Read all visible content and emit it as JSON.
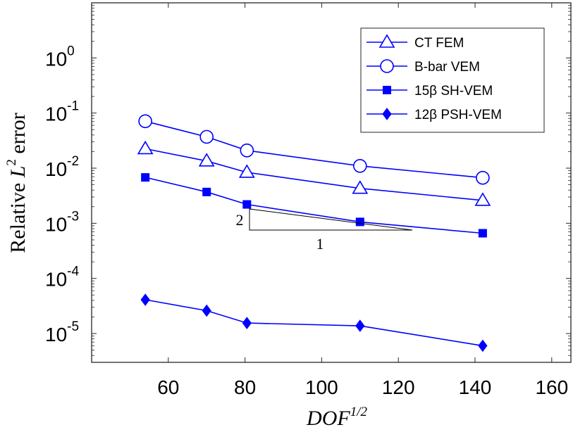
{
  "chart_data": {
    "type": "line",
    "xscale": "linear",
    "yscale": "log",
    "xlim": [
      40,
      165
    ],
    "ylim": [
      3e-06,
      10
    ],
    "x_ticks": [
      60,
      80,
      100,
      120,
      140,
      160
    ],
    "y_ticks": [
      {
        "value": 1,
        "base": "10",
        "exp": "0"
      },
      {
        "value": 0.1,
        "base": "10",
        "exp": "-1"
      },
      {
        "value": 0.01,
        "base": "10",
        "exp": "-2"
      },
      {
        "value": 0.001,
        "base": "10",
        "exp": "-3"
      },
      {
        "value": 0.0001,
        "base": "10",
        "exp": "-4"
      },
      {
        "value": 1e-05,
        "base": "10",
        "exp": "-5"
      }
    ],
    "xlabel": {
      "base": "DOF",
      "exp": "1/2"
    },
    "ylabel": {
      "text": "Relative ",
      "var": "L",
      "exp": "2",
      "suffix": " error"
    },
    "legend_position": "top-right",
    "color": "#0000ff",
    "series": [
      {
        "name": "CT FEM",
        "marker": "triangle",
        "x": [
          54,
          70,
          80.5,
          110,
          142
        ],
        "y": [
          0.0225,
          0.0135,
          0.0084,
          0.0043,
          0.0026
        ]
      },
      {
        "name": "B-bar VEM",
        "marker": "circle",
        "x": [
          54,
          70,
          80.5,
          110,
          142
        ],
        "y": [
          0.071,
          0.037,
          0.021,
          0.011,
          0.0067
        ]
      },
      {
        "name": "15β SH-VEM",
        "marker": "square",
        "x": [
          54,
          70,
          80.5,
          110,
          142
        ],
        "y": [
          0.0068,
          0.0037,
          0.0022,
          0.00106,
          0.00066
        ]
      },
      {
        "name": "12β PSH-VEM",
        "marker": "diamond",
        "x": [
          54,
          70,
          80.5,
          110,
          142
        ],
        "y": [
          4.1e-05,
          2.6e-05,
          1.55e-05,
          1.38e-05,
          6e-06
        ]
      }
    ],
    "slope_triangle": {
      "rise_label": "2",
      "run_label": "1"
    }
  }
}
